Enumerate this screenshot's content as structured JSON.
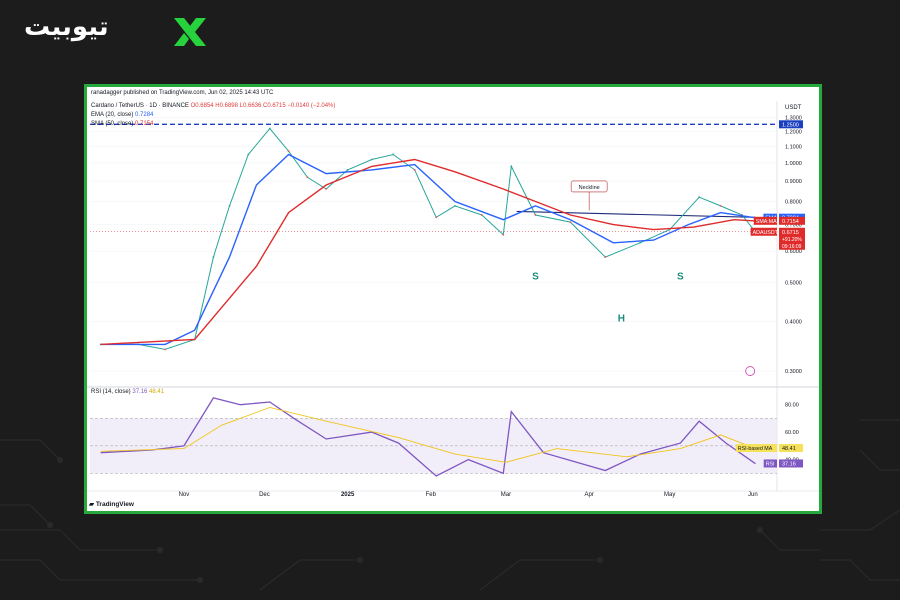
{
  "brand": {
    "name": "تیوبیت",
    "accent": "#27d33c"
  },
  "header": {
    "published": "ranadagger published on TradingView.com, Jun 02, 2025 14:43 UTC",
    "symbol": "Cardano / TetherUS · 1D · BINANCE",
    "ohlc": "O0.6854 H0.6898 L0.6636 C0.6715 −0.0140 (−2.04%)",
    "ema_label": "EMA (20, close)",
    "ema_value": "0.7284",
    "sma_label": "SMA (50, close)",
    "sma_value": "0.7154",
    "rsi_label": "RSI (14, close)",
    "rsi_value": "37.16",
    "rsi_ma_value": "48.41"
  },
  "footer": {
    "logo": "TradingView"
  },
  "annotations": {
    "neckline": "Neckline",
    "left_shoulder": "S",
    "head": "H",
    "right_shoulder": "S"
  },
  "chart_data": [
    {
      "type": "line",
      "title": "Cardano / TetherUS · 1D · BINANCE",
      "currency": "USDT",
      "scale": "log",
      "x_ticks": [
        "Nov",
        "Dec",
        "2025",
        "Feb",
        "Mar",
        "Apr",
        "May",
        "Jun"
      ],
      "y_ticks": [
        "1.3000",
        "1.2000",
        "1.1000",
        "1.0000",
        "0.9000",
        "0.8000",
        "0.7000",
        "0.6000",
        "0.5000",
        "0.4000",
        "0.3000"
      ],
      "ylim": [
        0.28,
        1.35
      ],
      "horizontal_line": {
        "value": 1.25,
        "label": "1.2500",
        "color": "#1a3fbf"
      },
      "price_labels": [
        {
          "name": "EMA",
          "value": "0.7284",
          "color": "#2962ff"
        },
        {
          "name": "SMA:MA",
          "value": "0.7154",
          "color": "#e02b2b"
        },
        {
          "name": "ADAUSDT",
          "value": "0.6715",
          "extra": [
            "+91.20%",
            "09:16:09"
          ],
          "color": "#e02b2b"
        }
      ],
      "series": [
        {
          "name": "ADAUSDT",
          "x": [
            "2024-10-01",
            "2024-10-15",
            "2024-10-25",
            "2024-11-05",
            "2024-11-12",
            "2024-11-18",
            "2024-11-25",
            "2024-12-03",
            "2024-12-10",
            "2024-12-17",
            "2024-12-24",
            "2025-01-01",
            "2025-01-10",
            "2025-01-18",
            "2025-01-26",
            "2025-02-03",
            "2025-02-10",
            "2025-02-20",
            "2025-02-28",
            "2025-03-03",
            "2025-03-12",
            "2025-03-25",
            "2025-04-07",
            "2025-04-20",
            "2025-05-01",
            "2025-05-12",
            "2025-05-20",
            "2025-05-28",
            "2025-06-02"
          ],
          "values": [
            0.35,
            0.35,
            0.34,
            0.36,
            0.58,
            0.78,
            1.05,
            1.22,
            1.07,
            0.92,
            0.86,
            0.96,
            1.02,
            1.05,
            0.96,
            0.73,
            0.78,
            0.74,
            0.66,
            0.98,
            0.74,
            0.71,
            0.58,
            0.63,
            0.68,
            0.82,
            0.78,
            0.74,
            0.67
          ]
        },
        {
          "name": "EMA",
          "x": [
            "2024-10-01",
            "2024-10-25",
            "2024-11-05",
            "2024-11-18",
            "2024-11-28",
            "2024-12-10",
            "2024-12-24",
            "2025-01-10",
            "2025-01-26",
            "2025-02-10",
            "2025-02-28",
            "2025-03-12",
            "2025-03-25",
            "2025-04-10",
            "2025-04-25",
            "2025-05-08",
            "2025-05-20",
            "2025-06-02"
          ],
          "values": [
            0.35,
            0.35,
            0.38,
            0.58,
            0.88,
            1.05,
            0.94,
            0.96,
            0.99,
            0.8,
            0.72,
            0.78,
            0.72,
            0.63,
            0.64,
            0.7,
            0.75,
            0.728
          ]
        },
        {
          "name": "SMA",
          "x": [
            "2024-10-01",
            "2024-11-05",
            "2024-11-28",
            "2024-12-10",
            "2024-12-24",
            "2025-01-10",
            "2025-01-26",
            "2025-02-10",
            "2025-02-28",
            "2025-03-12",
            "2025-03-25",
            "2025-04-10",
            "2025-04-25",
            "2025-05-10",
            "2025-05-25",
            "2025-06-02"
          ],
          "values": [
            0.35,
            0.36,
            0.55,
            0.75,
            0.88,
            0.98,
            1.02,
            0.95,
            0.86,
            0.8,
            0.74,
            0.7,
            0.68,
            0.69,
            0.72,
            0.715
          ]
        }
      ]
    },
    {
      "type": "line",
      "title": "RSI (14, close)",
      "y_ticks": [
        "80.00",
        "60.00",
        "40.00"
      ],
      "ylim": [
        20,
        90
      ],
      "band": [
        30,
        70
      ],
      "price_labels": [
        {
          "name": "RSI-based MA",
          "value": "48.41",
          "color": "#f5e15a"
        },
        {
          "name": "RSI",
          "value": "37.16",
          "color": "#7e57c2"
        }
      ],
      "series": [
        {
          "name": "RSI",
          "x": [
            "2024-10-01",
            "2024-10-20",
            "2024-11-01",
            "2024-11-12",
            "2024-11-22",
            "2024-12-03",
            "2024-12-12",
            "2024-12-24",
            "2025-01-10",
            "2025-01-20",
            "2025-02-03",
            "2025-02-15",
            "2025-02-28",
            "2025-03-03",
            "2025-03-15",
            "2025-04-07",
            "2025-04-20",
            "2025-05-05",
            "2025-05-12",
            "2025-05-22",
            "2025-06-02"
          ],
          "values": [
            45,
            47,
            50,
            85,
            80,
            82,
            70,
            55,
            60,
            52,
            28,
            40,
            30,
            75,
            45,
            32,
            44,
            52,
            68,
            52,
            37
          ]
        },
        {
          "name": "RSI-based MA",
          "x": [
            "2024-10-01",
            "2024-11-01",
            "2024-11-15",
            "2024-12-03",
            "2024-12-24",
            "2025-01-20",
            "2025-02-10",
            "2025-03-01",
            "2025-03-20",
            "2025-04-15",
            "2025-05-05",
            "2025-05-20",
            "2025-06-02"
          ],
          "values": [
            46,
            48,
            65,
            78,
            68,
            56,
            44,
            38,
            48,
            42,
            48,
            58,
            48
          ]
        }
      ]
    }
  ]
}
